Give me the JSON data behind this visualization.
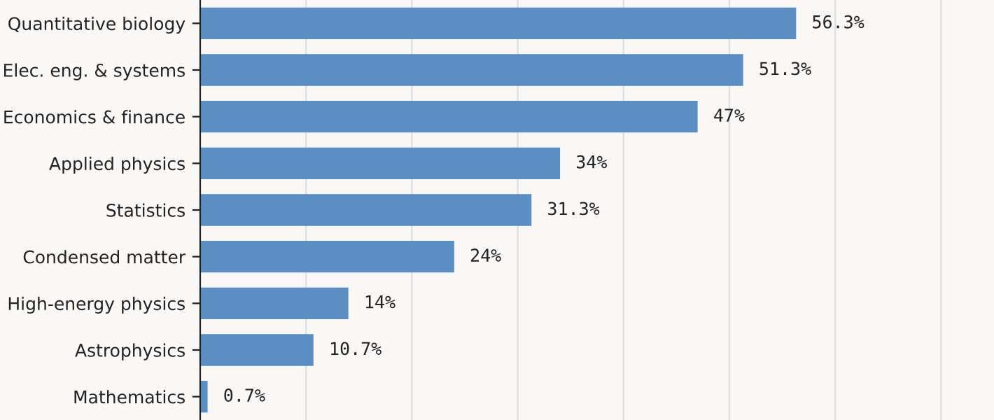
{
  "chart_data": {
    "type": "bar",
    "orientation": "horizontal",
    "categories": [
      "Quantitative biology",
      "Elec. eng. & systems",
      "Economics & finance",
      "Applied physics",
      "Statistics",
      "Condensed matter",
      "High-energy physics",
      "Astrophysics",
      "Mathematics"
    ],
    "values": [
      56.3,
      51.3,
      47,
      34,
      31.3,
      24,
      14,
      10.7,
      0.7
    ],
    "value_labels": [
      "56.3%",
      "51.3%",
      "47%",
      "34%",
      "31.3%",
      "24%",
      "14%",
      "10.7%",
      "0.7%"
    ],
    "color": "#5b8ec2",
    "xlim": [
      0,
      75
    ],
    "xticks": [
      {
        "value": 10,
        "label": null
      },
      {
        "value": 20,
        "label": null
      },
      {
        "value": 30,
        "label": null
      },
      {
        "value": 40,
        "label": null
      },
      {
        "value": 50,
        "label": null
      },
      {
        "value": 60,
        "label": null
      },
      {
        "value": 70,
        "label": null
      }
    ],
    "grid": "x",
    "tick_labels": "y",
    "legend": false
  }
}
